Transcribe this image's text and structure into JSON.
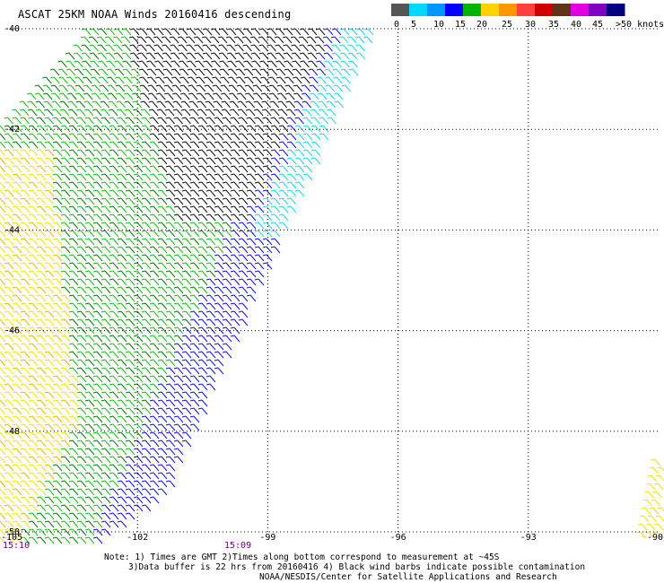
{
  "title": "ASCAT 25KM NOAA Winds 20160416 descending",
  "legend": {
    "ticks": [
      "0",
      "5",
      "10",
      "15",
      "20",
      "25",
      "30",
      "35",
      "40",
      "45",
      ">50 knots"
    ],
    "colors": [
      "#555555",
      "#00d8ff",
      "#0096ff",
      "#0000ff",
      "#00b400",
      "#ffd200",
      "#ff9600",
      "#ff4040",
      "#d00000",
      "#603018",
      "#e000e0",
      "#8000c0",
      "#000080"
    ]
  },
  "chart_data": {
    "type": "map",
    "lon_range": [
      -105,
      -90
    ],
    "lat_range": [
      -40,
      -50
    ],
    "lon_ticks": [
      "-105",
      "-102",
      "-99",
      "-96",
      "-93",
      "-90"
    ],
    "lat_ticks": [
      "-40",
      "-42",
      "-44",
      "-46",
      "-48",
      "-50"
    ],
    "grid": "dotted",
    "times": [
      "15:10",
      "15:09"
    ],
    "swath_speed_zones_knots": [
      {
        "region": "north-east (rain contaminated)",
        "color": "black"
      },
      {
        "region": "north",
        "speed": "5-10",
        "color": "cyan"
      },
      {
        "region": "center",
        "speed": "10-15",
        "color": "blue"
      },
      {
        "region": "south-center",
        "speed": "15-20",
        "color": "green"
      },
      {
        "region": "west",
        "speed": "20-25",
        "color": "yellow"
      }
    ]
  },
  "notes": {
    "line1": "Note: 1) Times are GMT 2)Times along bottom correspond to measurement at ~45S",
    "line2": "3)Data buffer is 22 hrs from 20160416 4) Black wind barbs indicate possible contamination",
    "line3": "NOAA/NESDIS/Center for Satellite Applications and Research"
  }
}
